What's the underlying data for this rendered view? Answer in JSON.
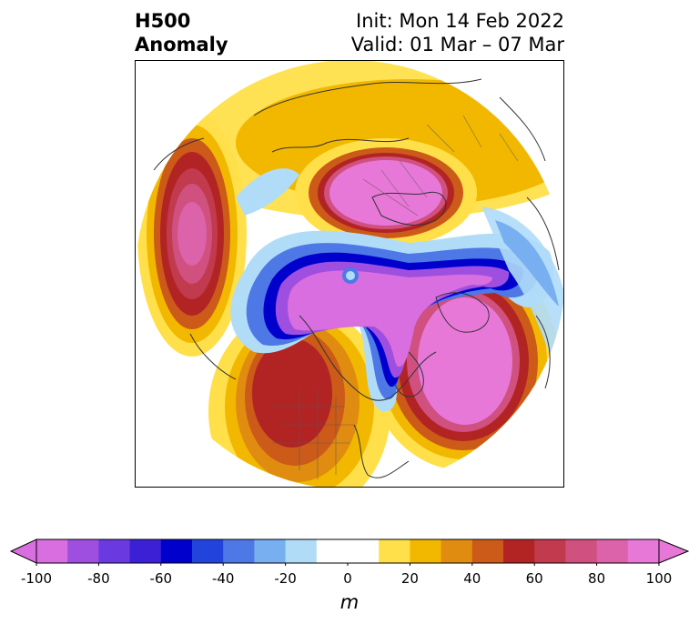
{
  "header": {
    "variable": "H500",
    "field": "Anomaly",
    "init": "Init: Mon 14 Feb 2022",
    "valid": "Valid: 01 Mar – 07 Mar"
  },
  "colorbar": {
    "unit": "m",
    "min": -100,
    "max": 100,
    "ticks": [
      "-100",
      "-80",
      "-60",
      "-40",
      "-20",
      "0",
      "20",
      "40",
      "60",
      "80",
      "100"
    ],
    "colors": [
      "#d86ee0",
      "#9f4fe0",
      "#6a3ae0",
      "#3b20d6",
      "#0000cc",
      "#2244dd",
      "#4d78e6",
      "#78aff0",
      "#b0dcf8",
      "#ffffff",
      "#ffffff",
      "#ffe04a",
      "#f2b800",
      "#e08c10",
      "#cc5a18",
      "#b22424",
      "#c23a4e",
      "#d05080",
      "#dc62aa",
      "#e878d8"
    ],
    "under_color": "#d86ee0",
    "over_color": "#e878d8"
  }
}
